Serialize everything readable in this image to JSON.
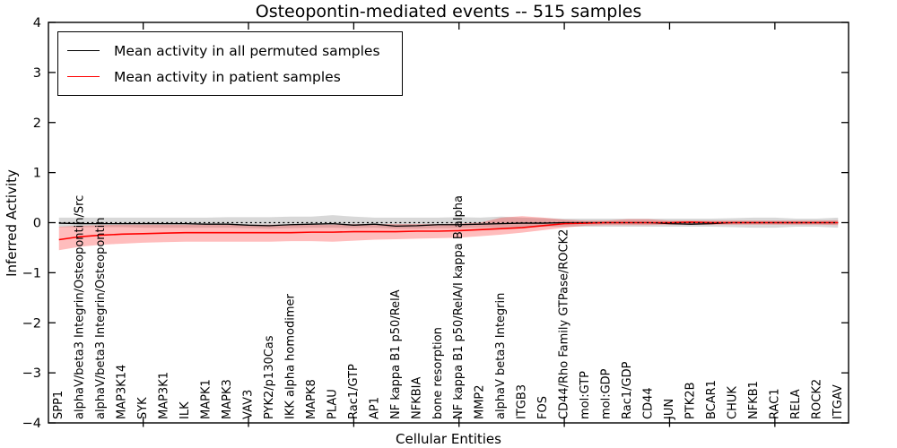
{
  "figure": {
    "title": "Osteopontin-mediated events -- 515 samples"
  },
  "axes": {
    "xlabel": "Cellular Entities",
    "ylabel": "Inferred Activity"
  },
  "legend": {
    "items": [
      {
        "label": "Mean activity in all permuted samples",
        "color": "#000000"
      },
      {
        "label": "Mean activity in patient samples",
        "color": "#ff0000"
      }
    ]
  },
  "chart_data": {
    "type": "line",
    "title": "Osteopontin-mediated events -- 515 samples",
    "xlabel": "Cellular Entities",
    "ylabel": "Inferred Activity",
    "ylim": [
      -4,
      4
    ],
    "yticks": [
      -4,
      -3,
      -2,
      -1,
      0,
      1,
      2,
      3,
      4
    ],
    "grid": false,
    "legend_position": "upper left",
    "zero_reference_line": 0,
    "x_major_tick_indices": [
      4,
      9,
      14,
      19,
      24,
      29,
      34
    ],
    "categories": [
      "SPP1",
      "alphaV/beta3 Integrin/Osteopontin/Src",
      "alphaV/beta3 Integrin/Osteopontin",
      "MAP3K14",
      "SYK",
      "MAP3K1",
      "ILK",
      "MAPK1",
      "MAPK3",
      "VAV3",
      "PYK2/p130Cas",
      "IKK alpha homodimer",
      "MAPK8",
      "PLAU",
      "Rac1/GTP",
      "AP1",
      "NF kappa B1 p50/RelA",
      "NFKBIA",
      "bone resorption",
      "NF kappa B1 p50/RelA/I kappa B alpha",
      "MMP2",
      "alphaV beta3 Integrin",
      "ITGB3",
      "FOS",
      "CD44/Rho Family GTPase/ROCK2",
      "mol:GTP",
      "mol:GDP",
      "Rac1/GDP",
      "CD44",
      "JUN",
      "PTK2B",
      "BCAR1",
      "CHUK",
      "NFKB1",
      "RAC1",
      "RELA",
      "ROCK2",
      "ITGAV"
    ],
    "series": [
      {
        "name": "Mean activity in all permuted samples",
        "color": "#000000",
        "values": [
          -0.01,
          -0.02,
          -0.02,
          -0.02,
          -0.02,
          -0.02,
          -0.02,
          -0.03,
          -0.03,
          -0.05,
          -0.06,
          -0.04,
          -0.03,
          -0.02,
          -0.05,
          -0.03,
          -0.07,
          -0.06,
          -0.04,
          -0.04,
          -0.03,
          -0.02,
          -0.01,
          -0.01,
          0,
          0,
          0,
          0,
          0,
          -0.02,
          -0.03,
          -0.02,
          0,
          0,
          0,
          0,
          0,
          0
        ],
        "band": {
          "color": "rgba(115,115,115,0.28)",
          "upper": [
            0.1,
            0.1,
            0.1,
            0.1,
            0.1,
            0.1,
            0.1,
            0.1,
            0.11,
            0.11,
            0.11,
            0.12,
            0.12,
            0.15,
            0.12,
            0.1,
            0.1,
            0.1,
            0.1,
            0.11,
            0.1,
            0.12,
            0.1,
            0.09,
            0.08,
            0.08,
            0.08,
            0.08,
            0.08,
            0.08,
            0.08,
            0.08,
            0.09,
            0.1,
            0.1,
            0.08,
            0.08,
            0.1
          ],
          "lower": [
            -0.09,
            -0.09,
            -0.09,
            -0.09,
            -0.1,
            -0.1,
            -0.1,
            -0.1,
            -0.1,
            -0.11,
            -0.12,
            -0.11,
            -0.1,
            -0.1,
            -0.11,
            -0.1,
            -0.12,
            -0.12,
            -0.11,
            -0.11,
            -0.1,
            -0.1,
            -0.09,
            -0.08,
            -0.08,
            -0.08,
            -0.08,
            -0.08,
            -0.08,
            -0.08,
            -0.08,
            -0.08,
            -0.09,
            -0.1,
            -0.1,
            -0.08,
            -0.08,
            -0.1
          ]
        }
      },
      {
        "name": "Mean activity in patient samples",
        "color": "#ff0000",
        "values": [
          -0.34,
          -0.28,
          -0.25,
          -0.23,
          -0.22,
          -0.21,
          -0.2,
          -0.2,
          -0.2,
          -0.2,
          -0.2,
          -0.2,
          -0.19,
          -0.19,
          -0.18,
          -0.18,
          -0.18,
          -0.17,
          -0.17,
          -0.16,
          -0.14,
          -0.12,
          -0.1,
          -0.06,
          -0.02,
          -0.01,
          0,
          0,
          0,
          0,
          0.01,
          0,
          0,
          0,
          0,
          0,
          0,
          0
        ],
        "band": {
          "color": "rgba(255,0,0,0.26)",
          "upper": [
            -0.08,
            -0.06,
            -0.05,
            -0.04,
            -0.04,
            -0.04,
            -0.04,
            -0.04,
            -0.04,
            -0.04,
            -0.04,
            -0.04,
            -0.04,
            -0.04,
            -0.03,
            -0.03,
            -0.03,
            -0.03,
            -0.03,
            -0.02,
            0,
            0.1,
            0.13,
            0.1,
            0.06,
            0.04,
            0.04,
            0.07,
            0.07,
            0.04,
            0.04,
            0.04,
            0.04,
            0.04,
            0.04,
            0.04,
            0.04,
            0.05
          ],
          "lower": [
            -0.55,
            -0.48,
            -0.44,
            -0.42,
            -0.4,
            -0.39,
            -0.38,
            -0.38,
            -0.38,
            -0.38,
            -0.38,
            -0.37,
            -0.37,
            -0.38,
            -0.36,
            -0.34,
            -0.33,
            -0.32,
            -0.31,
            -0.3,
            -0.27,
            -0.24,
            -0.2,
            -0.15,
            -0.1,
            -0.06,
            -0.05,
            -0.05,
            -0.05,
            -0.04,
            -0.04,
            -0.04,
            -0.04,
            -0.04,
            -0.04,
            -0.04,
            -0.04,
            -0.05
          ]
        }
      }
    ]
  }
}
